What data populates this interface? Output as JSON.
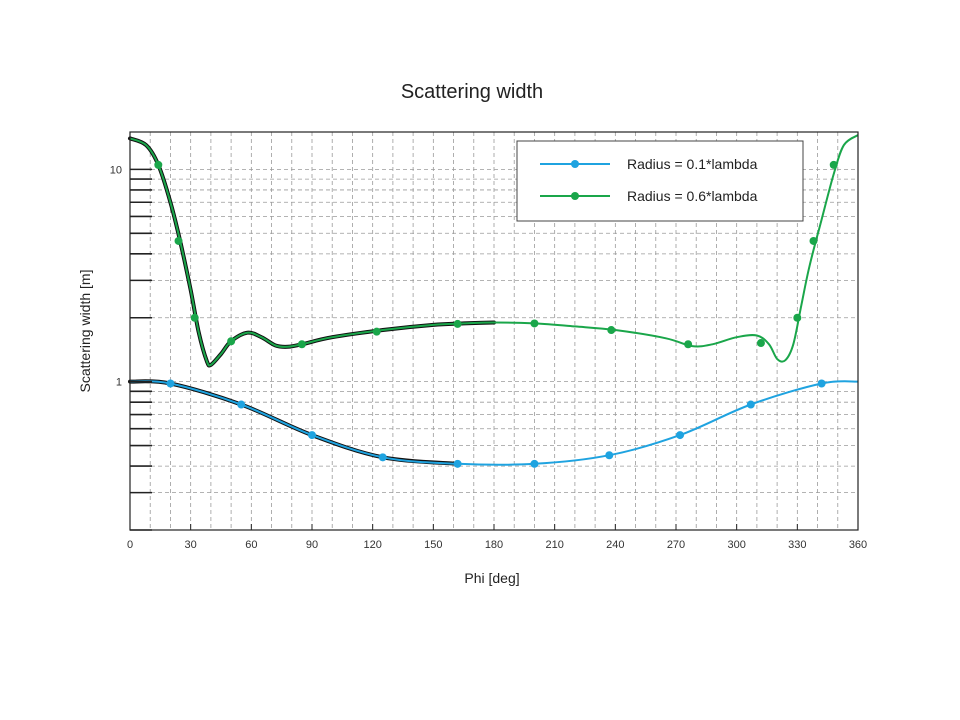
{
  "chart_data": {
    "type": "line",
    "title": "Scattering width",
    "xlabel": "Phi [deg]",
    "ylabel": "Scattering width [m]",
    "xlim": [
      0,
      360
    ],
    "ylim": [
      0.2,
      15
    ],
    "yscale": "log",
    "x_ticks": [
      0,
      30,
      60,
      90,
      120,
      150,
      180,
      210,
      240,
      270,
      300,
      330,
      360
    ],
    "y_ticks": [
      {
        "value": 1,
        "label": "1"
      },
      {
        "value": 10,
        "label": "10"
      }
    ],
    "grid": true,
    "legend_position": "top-right",
    "series": [
      {
        "name": "Radius = 0.1*lambda",
        "color": "#1fa3e0",
        "x": [
          0,
          20,
          55,
          90,
          125,
          162,
          200,
          237,
          272,
          307,
          342,
          360
        ],
        "y": [
          1.0,
          0.98,
          0.78,
          0.56,
          0.44,
          0.41,
          0.41,
          0.45,
          0.56,
          0.78,
          0.98,
          1.0
        ],
        "markers": [
          [
            20,
            0.98
          ],
          [
            55,
            0.78
          ],
          [
            90,
            0.56
          ],
          [
            125,
            0.44
          ],
          [
            162,
            0.41
          ],
          [
            200,
            0.41
          ],
          [
            237,
            0.45
          ],
          [
            272,
            0.56
          ],
          [
            307,
            0.78
          ],
          [
            342,
            0.98
          ]
        ]
      },
      {
        "name": "Radius = 0.6*lambda",
        "color": "#1aa64a",
        "x": [
          0,
          8,
          14,
          20,
          25,
          30,
          34,
          38,
          40,
          45,
          50,
          58,
          65,
          72,
          78,
          85,
          100,
          125,
          150,
          165,
          180,
          200,
          220,
          240,
          265,
          278,
          288,
          300,
          310,
          316,
          320,
          324,
          328,
          332,
          336,
          342,
          348,
          353,
          360
        ],
        "y": [
          14,
          13,
          10.5,
          7,
          4.5,
          2.7,
          1.7,
          1.25,
          1.2,
          1.35,
          1.55,
          1.7,
          1.62,
          1.48,
          1.46,
          1.5,
          1.62,
          1.75,
          1.85,
          1.88,
          1.9,
          1.88,
          1.82,
          1.75,
          1.6,
          1.47,
          1.5,
          1.62,
          1.65,
          1.5,
          1.28,
          1.26,
          1.5,
          2.3,
          3.5,
          5.8,
          9.5,
          13,
          14.5
        ],
        "markers": [
          [
            14,
            10.5
          ],
          [
            24,
            4.6
          ],
          [
            32,
            2.0
          ],
          [
            50,
            1.55
          ],
          [
            85,
            1.5
          ],
          [
            122,
            1.72
          ],
          [
            162,
            1.87
          ],
          [
            200,
            1.88
          ],
          [
            238,
            1.75
          ],
          [
            276,
            1.5
          ],
          [
            312,
            1.52
          ],
          [
            330,
            2.0
          ],
          [
            338,
            4.6
          ],
          [
            348,
            10.5
          ]
        ]
      }
    ]
  }
}
